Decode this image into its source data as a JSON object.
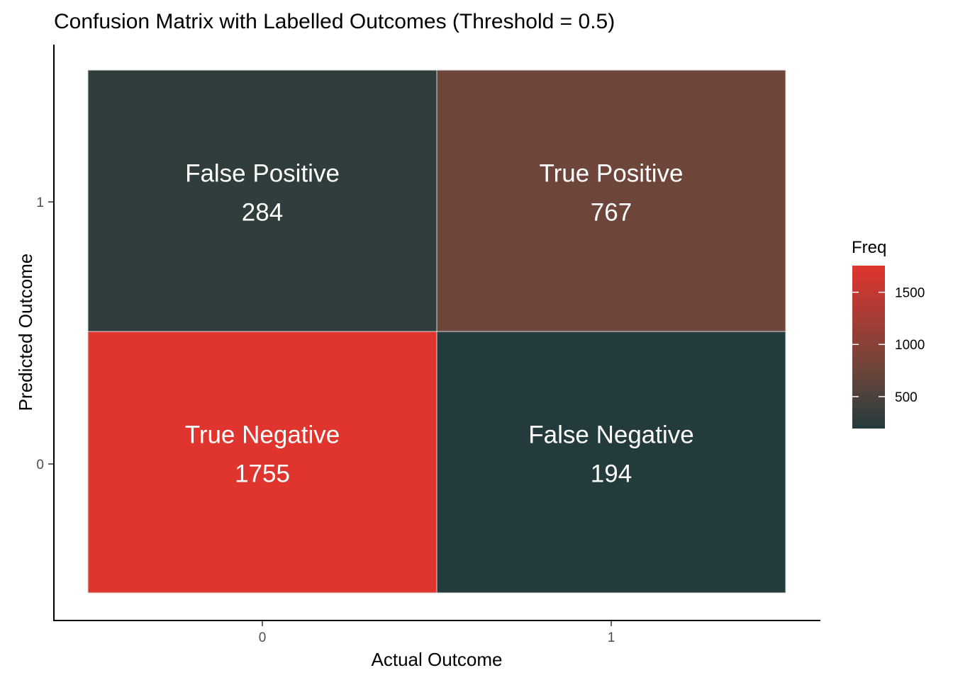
{
  "chart_data": {
    "type": "heatmap",
    "title": "Confusion Matrix with Labelled Outcomes (Threshold = 0.5)",
    "xlabel": "Actual Outcome",
    "ylabel": "Predicted Outcome",
    "x_categories": [
      "0",
      "1"
    ],
    "y_categories": [
      "0",
      "1"
    ],
    "cells": [
      {
        "actual": "0",
        "predicted": "1",
        "label": "False Positive",
        "value": 284
      },
      {
        "actual": "1",
        "predicted": "1",
        "label": "True Positive",
        "value": 767
      },
      {
        "actual": "0",
        "predicted": "0",
        "label": "True Negative",
        "value": 1755
      },
      {
        "actual": "1",
        "predicted": "0",
        "label": "False Negative",
        "value": 194
      }
    ],
    "legend": {
      "title": "Freq",
      "ticks": [
        500,
        1000,
        1500
      ],
      "low_color": "#243b3d",
      "high_color": "#e0352f",
      "position": "right"
    },
    "grid": false
  }
}
